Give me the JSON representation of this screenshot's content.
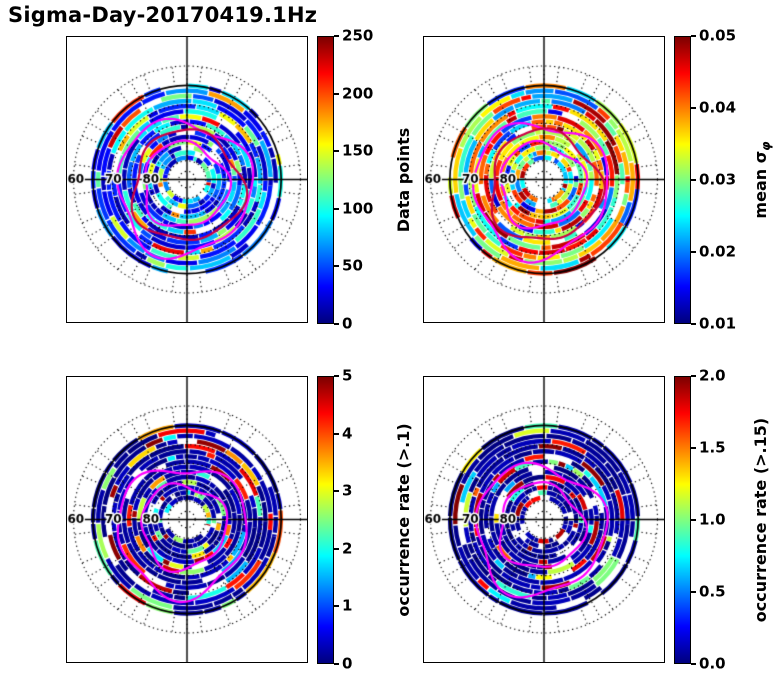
{
  "title": "Sigma-Day-20170419.1Hz",
  "chart_data": [
    {
      "type": "heatmap",
      "projection": "polar",
      "position": "top-left",
      "colormap": "jet",
      "colorbar_label": {
        "text": "Data points",
        "sub": ""
      },
      "colorbar_ticks": [
        "0",
        "50",
        "100",
        "150",
        "200",
        "250"
      ],
      "colorbar_range": [
        0,
        250
      ],
      "elevation_tick_labels": [
        "60",
        "70",
        "80"
      ],
      "grid": {
        "style": "dotted",
        "spokes_deg": 30,
        "solid_circle": true,
        "crosshair": true
      },
      "render_hints": {
        "seed": 11,
        "gap_frac": 0.07,
        "value_pools": [
          [
            0.45,
            0.04,
            0.18
          ],
          [
            0.3,
            0.2,
            0.42
          ],
          [
            0.17,
            0.42,
            0.62
          ],
          [
            0.08,
            0.65,
            0.95
          ]
        ],
        "contours": [
          {
            "r": 0.36,
            "dx": -0.02,
            "dy": 0.05,
            "ph": 1.2,
            "color": "#ff00ff"
          },
          {
            "r": 0.57,
            "dx": -0.03,
            "dy": 0.07,
            "ph": 2.1,
            "color": "#ff00ff"
          },
          {
            "r": 0.47,
            "dx": 0.0,
            "dy": 0.06,
            "ph": 0.5,
            "color": "#cc0044"
          }
        ]
      }
    },
    {
      "type": "heatmap",
      "projection": "polar",
      "position": "top-right",
      "colormap": "jet",
      "colorbar_label": {
        "text": "mean σ",
        "sub": "φ"
      },
      "colorbar_ticks": [
        "0.01",
        "0.02",
        "0.03",
        "0.04",
        "0.05"
      ],
      "colorbar_range": [
        0.01,
        0.05
      ],
      "elevation_tick_labels": [
        "60",
        "70",
        "80"
      ],
      "grid": {
        "style": "dotted",
        "spokes_deg": 30,
        "solid_circle": true,
        "crosshair": true
      },
      "render_hints": {
        "seed": 23,
        "gap_frac": 0.06,
        "value_pools": [
          [
            0.15,
            0.08,
            0.3
          ],
          [
            0.3,
            0.3,
            0.55
          ],
          [
            0.3,
            0.55,
            0.78
          ],
          [
            0.25,
            0.78,
            1.0
          ]
        ],
        "contours": [
          {
            "r": 0.36,
            "dx": -0.02,
            "dy": 0.05,
            "ph": 1.7,
            "color": "#ff00ff"
          },
          {
            "r": 0.57,
            "dx": -0.03,
            "dy": 0.08,
            "ph": 2.6,
            "color": "#ff00ff"
          },
          {
            "r": 0.47,
            "dx": 0.0,
            "dy": 0.06,
            "ph": 0.9,
            "color": "#cc0044"
          }
        ]
      }
    },
    {
      "type": "heatmap",
      "projection": "polar",
      "position": "bottom-left",
      "colormap": "jet",
      "colorbar_label": {
        "text": "occurrence rate (>.1)",
        "sub": ""
      },
      "colorbar_ticks": [
        "0",
        "1",
        "2",
        "3",
        "4",
        "5"
      ],
      "colorbar_range": [
        0,
        5
      ],
      "elevation_tick_labels": [
        "60",
        "70",
        "80"
      ],
      "grid": {
        "style": "dotted",
        "spokes_deg": 30,
        "solid_circle": true,
        "crosshair": true
      },
      "render_hints": {
        "seed": 37,
        "gap_frac": 0.06,
        "value_pools": [
          [
            0.72,
            0.0,
            0.07
          ],
          [
            0.1,
            0.28,
            0.55
          ],
          [
            0.09,
            0.55,
            0.85
          ],
          [
            0.09,
            0.85,
            1.0
          ]
        ],
        "contours": [
          {
            "r": 0.36,
            "dx": -0.03,
            "dy": 0.06,
            "ph": 2.2,
            "color": "#ff00ff"
          },
          {
            "r": 0.55,
            "dx": -0.04,
            "dy": 0.09,
            "ph": 3.1,
            "color": "#ff00ff"
          }
        ]
      }
    },
    {
      "type": "heatmap",
      "projection": "polar",
      "position": "bottom-right",
      "colormap": "jet",
      "colorbar_label": {
        "text": "occurrence rate (>.15)",
        "sub": ""
      },
      "colorbar_ticks": [
        "0.0",
        "0.5",
        "1.0",
        "1.5",
        "2.0"
      ],
      "colorbar_range": [
        0.0,
        2.0
      ],
      "elevation_tick_labels": [
        "60",
        "70",
        "80"
      ],
      "grid": {
        "style": "dotted",
        "spokes_deg": 30,
        "solid_circle": true,
        "crosshair": true
      },
      "render_hints": {
        "seed": 51,
        "gap_frac": 0.06,
        "value_pools": [
          [
            0.78,
            0.0,
            0.06
          ],
          [
            0.07,
            0.28,
            0.55
          ],
          [
            0.05,
            0.55,
            0.8
          ],
          [
            0.1,
            0.85,
            1.0
          ]
        ],
        "contours": [
          {
            "r": 0.36,
            "dx": -0.03,
            "dy": 0.06,
            "ph": 0.8,
            "color": "#ff00ff"
          },
          {
            "r": 0.55,
            "dx": -0.04,
            "dy": 0.09,
            "ph": 1.9,
            "color": "#ff00ff"
          }
        ]
      }
    }
  ]
}
